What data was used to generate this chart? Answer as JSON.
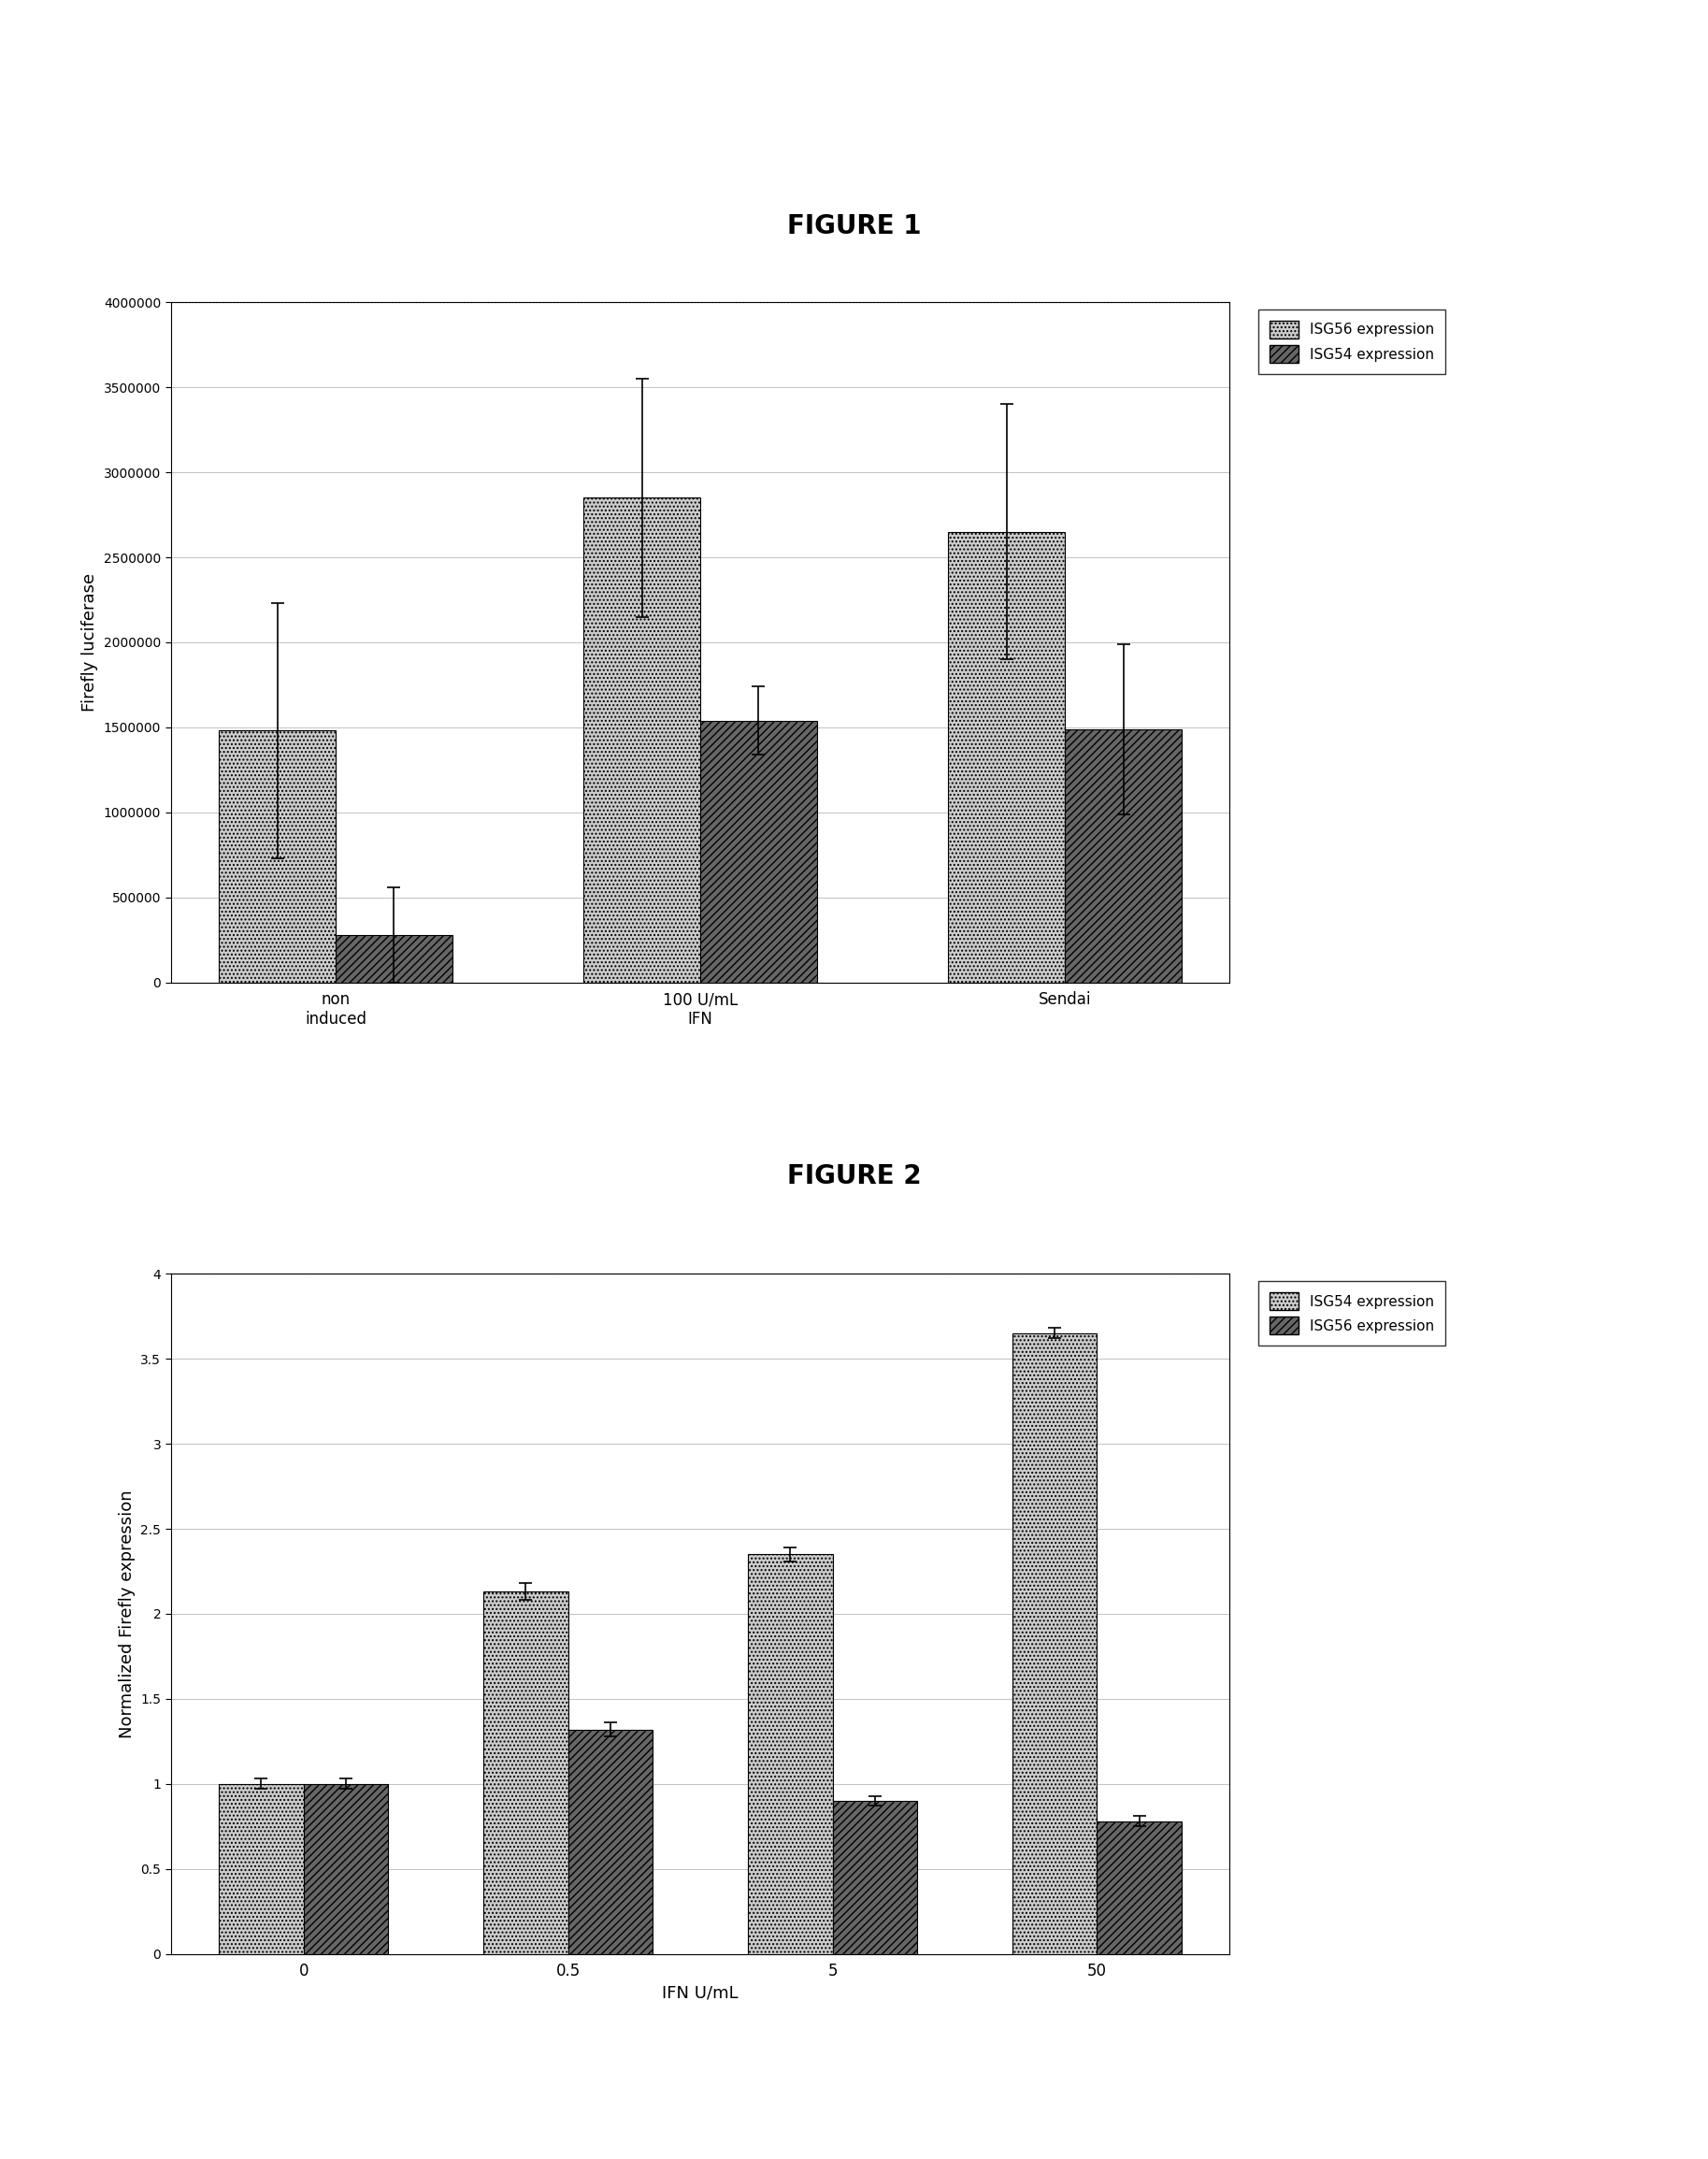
{
  "fig1": {
    "title": "FIGURE 1",
    "categories": [
      "non\ninduced",
      "100 U/mL\nIFN",
      "Sendai"
    ],
    "isg56_values": [
      1480000,
      2850000,
      2650000
    ],
    "isg54_values": [
      280000,
      1540000,
      1490000
    ],
    "isg56_errors": [
      750000,
      700000,
      750000
    ],
    "isg54_errors": [
      280000,
      200000,
      500000
    ],
    "ylabel": "Firefly luciferase",
    "ylim": [
      0,
      4000000
    ],
    "yticks": [
      0,
      500000,
      1000000,
      1500000,
      2000000,
      2500000,
      3000000,
      3500000,
      4000000
    ],
    "legend1": "ISG56 expression",
    "legend2": "ISG54 expression"
  },
  "fig2": {
    "title": "FIGURE 2",
    "categories": [
      "0",
      "0.5",
      "5",
      "50"
    ],
    "isg54_values": [
      1.0,
      2.13,
      2.35,
      3.65
    ],
    "isg56_values": [
      1.0,
      1.32,
      0.9,
      0.78
    ],
    "isg54_errors": [
      0.03,
      0.05,
      0.04,
      0.03
    ],
    "isg56_errors": [
      0.03,
      0.04,
      0.03,
      0.03
    ],
    "ylabel": "Normalized Firefly expression",
    "xlabel": "IFN U/mL",
    "ylim": [
      0,
      4.0
    ],
    "yticks": [
      0,
      0.5,
      1.0,
      1.5,
      2.0,
      2.5,
      3.0,
      3.5,
      4.0
    ],
    "legend1": "ISG54 expression",
    "legend2": "ISG56 expression"
  },
  "bar_width": 0.32,
  "color_light": "#cccccc",
  "color_dark": "#666666",
  "hatch_light": "....",
  "hatch_dark": "////"
}
